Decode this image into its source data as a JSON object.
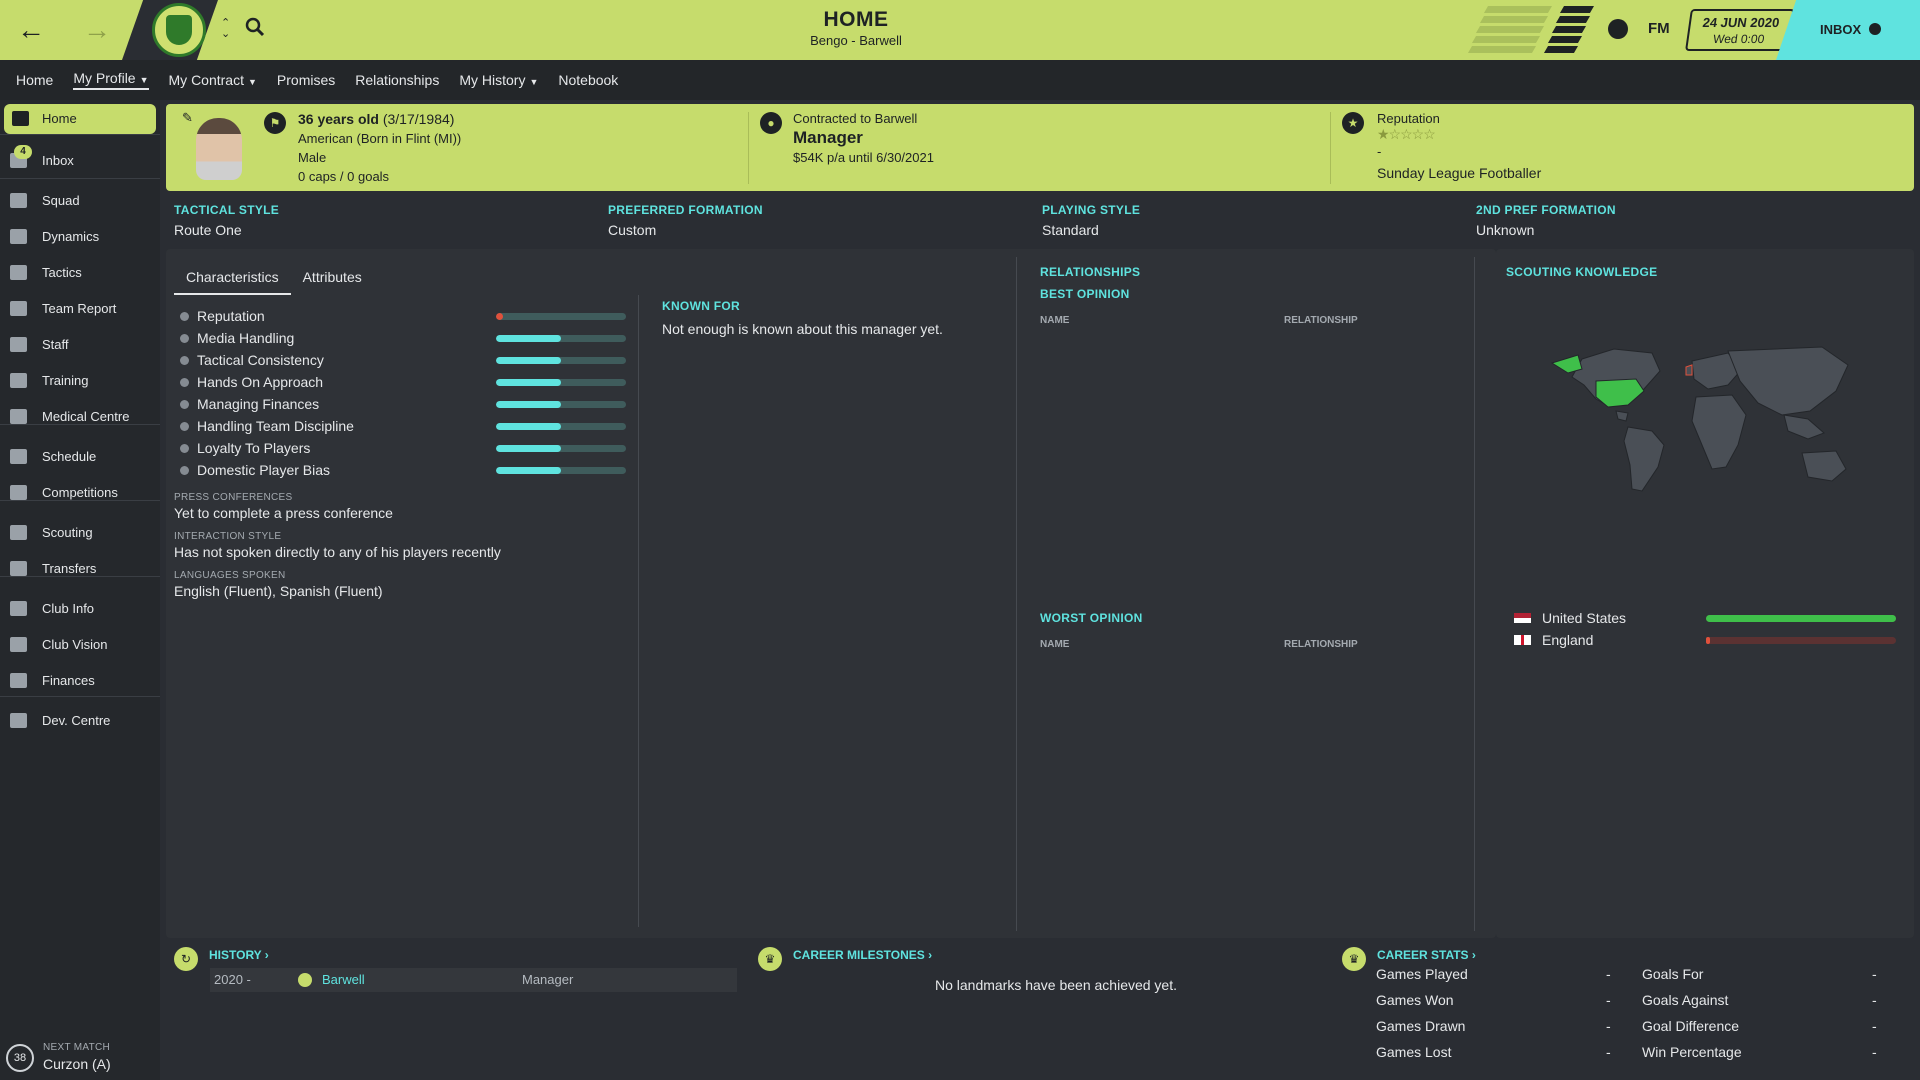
{
  "header": {
    "title": "HOME",
    "subtitle": "Bengo - Barwell",
    "date": "24 JUN 2020",
    "time": "Wed 0:00",
    "inbox_label": "INBOX",
    "fm_label": "FM",
    "accent_color": "#c6dc6c",
    "highlight_color": "#5fe3df"
  },
  "subnav": [
    {
      "label": "Home"
    },
    {
      "label": "My Profile",
      "dropdown": true,
      "active": true
    },
    {
      "label": "My Contract",
      "dropdown": true
    },
    {
      "label": "Promises"
    },
    {
      "label": "Relationships"
    },
    {
      "label": "My History",
      "dropdown": true
    },
    {
      "label": "Notebook"
    }
  ],
  "sidebar": {
    "items": [
      {
        "label": "Home",
        "icon": "home-icon",
        "active": true
      },
      {
        "label": "Inbox",
        "icon": "inbox-icon",
        "badge": "4"
      },
      {
        "label": "Squad",
        "icon": "squad-icon"
      },
      {
        "label": "Dynamics",
        "icon": "dynamics-icon"
      },
      {
        "label": "Tactics",
        "icon": "tactics-icon"
      },
      {
        "label": "Team Report",
        "icon": "report-icon"
      },
      {
        "label": "Staff",
        "icon": "staff-icon"
      },
      {
        "label": "Training",
        "icon": "training-icon"
      },
      {
        "label": "Medical Centre",
        "icon": "medical-icon"
      },
      {
        "label": "Schedule",
        "icon": "schedule-icon"
      },
      {
        "label": "Competitions",
        "icon": "trophy-icon"
      },
      {
        "label": "Scouting",
        "icon": "scouting-icon"
      },
      {
        "label": "Transfers",
        "icon": "transfers-icon"
      },
      {
        "label": "Club Info",
        "icon": "shield-icon"
      },
      {
        "label": "Club Vision",
        "icon": "vision-icon"
      },
      {
        "label": "Finances",
        "icon": "finances-icon"
      },
      {
        "label": "Dev. Centre",
        "icon": "dev-centre-icon"
      }
    ],
    "next_match_label": "NEXT MATCH",
    "next_match_value": "Curzon (A)",
    "next_match_days": "38"
  },
  "profile": {
    "age": "36 years old",
    "dob": "(3/17/1984)",
    "nationality": "American (Born in Flint (MI))",
    "gender": "Male",
    "caps": "0 caps / 0 goals",
    "contract_label": "Contracted to Barwell",
    "role": "Manager",
    "salary": "$54K p/a until 6/30/2021",
    "reputation_label": "Reputation",
    "reputation_stars": "★☆☆☆☆",
    "reputation_dash": "-",
    "reputation_level": "Sunday League Footballer"
  },
  "info": [
    {
      "label": "TACTICAL STYLE",
      "value": "Route One"
    },
    {
      "label": "PREFERRED FORMATION",
      "value": "Custom"
    },
    {
      "label": "PLAYING STYLE",
      "value": "Standard"
    },
    {
      "label": "2ND PREF FORMATION",
      "value": "Unknown"
    }
  ],
  "characteristics": {
    "tabs": [
      "Characteristics",
      "Attributes"
    ],
    "items": [
      {
        "label": "Reputation",
        "level": 0.05,
        "color": "#e0513c"
      },
      {
        "label": "Media Handling",
        "level": 0.5,
        "color": "#5fe3df"
      },
      {
        "label": "Tactical Consistency",
        "level": 0.5,
        "color": "#5fe3df"
      },
      {
        "label": "Hands On Approach",
        "level": 0.5,
        "color": "#5fe3df"
      },
      {
        "label": "Managing Finances",
        "level": 0.5,
        "color": "#5fe3df"
      },
      {
        "label": "Handling Team Discipline",
        "level": 0.5,
        "color": "#5fe3df"
      },
      {
        "label": "Loyalty To Players",
        "level": 0.5,
        "color": "#5fe3df"
      },
      {
        "label": "Domestic Player Bias",
        "level": 0.5,
        "color": "#5fe3df"
      }
    ],
    "press_label": "PRESS CONFERENCES",
    "press_value": "Yet to complete a press conference",
    "interaction_label": "INTERACTION STYLE",
    "interaction_value": "Has not spoken directly to any of his players recently",
    "languages_label": "LANGUAGES SPOKEN",
    "languages_value": "English (Fluent), Spanish (Fluent)"
  },
  "known_for": {
    "label": "KNOWN FOR",
    "value": "Not enough is known about this manager yet."
  },
  "relationships": {
    "title": "RELATIONSHIPS",
    "best_label": "BEST OPINION",
    "worst_label": "WORST OPINION",
    "col_name": "NAME",
    "col_relationship": "RELATIONSHIP"
  },
  "scouting": {
    "title": "SCOUTING KNOWLEDGE",
    "countries": [
      {
        "name": "United States",
        "level": 1.0,
        "color": "#3fbf4a",
        "flag": "us-flag-icon"
      },
      {
        "name": "England",
        "level": 0.02,
        "color": "#e0513c",
        "flag": "england-flag-icon"
      }
    ]
  },
  "history": {
    "title": "HISTORY",
    "rows": [
      {
        "years": "2020 -",
        "club": "Barwell",
        "role": "Manager"
      }
    ]
  },
  "milestones": {
    "title": "CAREER MILESTONES",
    "empty": "No landmarks have been achieved yet."
  },
  "career_stats": {
    "title": "CAREER STATS",
    "left": [
      {
        "label": "Games Played",
        "value": "-"
      },
      {
        "label": "Games Won",
        "value": "-"
      },
      {
        "label": "Games Drawn",
        "value": "-"
      },
      {
        "label": "Games Lost",
        "value": "-"
      }
    ],
    "right": [
      {
        "label": "Goals For",
        "value": "-"
      },
      {
        "label": "Goals Against",
        "value": "-"
      },
      {
        "label": "Goal Difference",
        "value": "-"
      },
      {
        "label": "Win Percentage",
        "value": "-"
      }
    ]
  }
}
